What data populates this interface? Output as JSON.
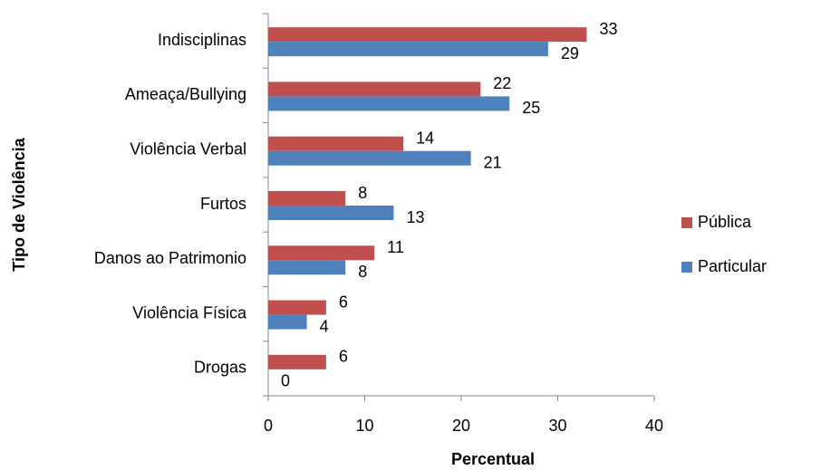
{
  "chart_data": {
    "type": "bar",
    "orientation": "horizontal",
    "x_label": "Percentual",
    "y_label": "Tipo de Violência",
    "categories": [
      "Indisciplinas",
      "Ameaça/Bullying",
      "Violência Verbal",
      "Furtos",
      "Danos ao Patrimonio",
      "Violência Física",
      "Drogas"
    ],
    "series": [
      {
        "name": "Pública",
        "color": "#c0504d",
        "values": [
          33,
          22,
          14,
          8,
          11,
          6,
          6
        ]
      },
      {
        "name": "Particular",
        "color": "#4f81bd",
        "values": [
          29,
          25,
          21,
          13,
          8,
          4,
          0
        ]
      }
    ],
    "xlim": [
      0,
      40
    ],
    "xticks": [
      0,
      10,
      20,
      30,
      40
    ],
    "grid": false,
    "legend": "right"
  }
}
